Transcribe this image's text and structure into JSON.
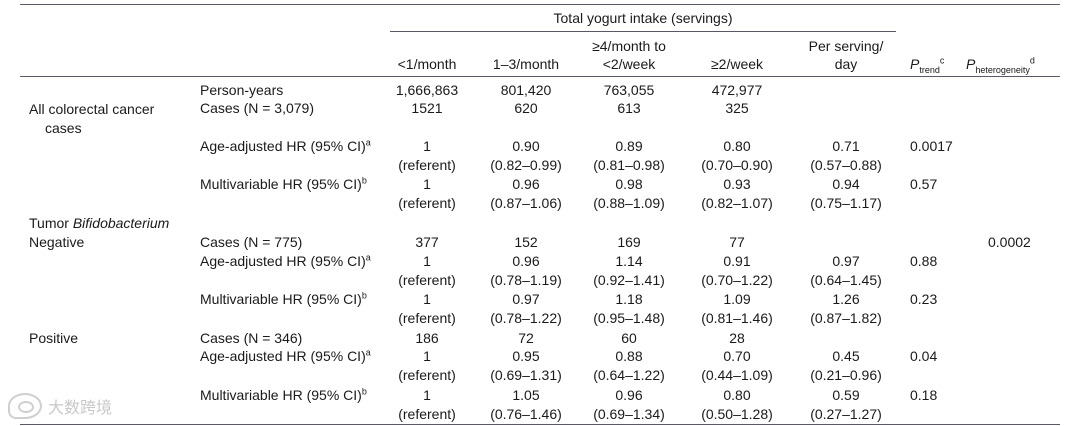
{
  "header": {
    "group_title": "Total yogurt intake (servings)",
    "col1": "<1/month",
    "col2": "1–3/month",
    "col3_line1": "≥4/month to",
    "col3_line2": "<2/week",
    "col4": "≥2/week",
    "col5_line1": "Per serving/",
    "col5_line2": "day",
    "ptrend_p": "P",
    "ptrend_sub": "trend",
    "ptrend_sup": "c",
    "phet_p": "P",
    "phet_sub": "heterogeneity",
    "phet_sup": "d"
  },
  "sections": {
    "all_line1": "All colorectal cancer",
    "all_line2": "cases",
    "tumor_prefix": "Tumor ",
    "tumor_italic": "Bifidobacterium",
    "negative": "Negative",
    "positive": "Positive"
  },
  "labels": {
    "person_years": "Person-years",
    "cases_all": "Cases (N = 3,079)",
    "cases_neg": "Cases (N = 775)",
    "cases_pos": "Cases (N = 346)",
    "age_adj": "Age-adjusted HR (95% CI)",
    "age_adj_sup": "a",
    "multi": "Multivariable HR (95% CI)",
    "multi_sup": "b"
  },
  "rows": {
    "person_years": [
      "1,666,863",
      "801,420",
      "763,055",
      "472,977"
    ],
    "all_cases": [
      "1521",
      "620",
      "613",
      "325"
    ],
    "all_age_hr": [
      "1",
      "0.90",
      "0.89",
      "0.80",
      "0.71"
    ],
    "all_age_ci": [
      "(referent)",
      "(0.82–0.99)",
      "(0.81–0.98)",
      "(0.70–0.90)",
      "(0.57–0.88)"
    ],
    "all_age_ptrend": "0.0017",
    "all_multi_hr": [
      "1",
      "0.96",
      "0.98",
      "0.93",
      "0.94"
    ],
    "all_multi_ci": [
      "(referent)",
      "(0.87–1.06)",
      "(0.88–1.09)",
      "(0.82–1.07)",
      "(0.75–1.17)"
    ],
    "all_multi_ptrend": "0.57",
    "neg_cases": [
      "377",
      "152",
      "169",
      "77"
    ],
    "neg_phet": "0.0002",
    "neg_age_hr": [
      "1",
      "0.96",
      "1.14",
      "0.91",
      "0.97"
    ],
    "neg_age_ci": [
      "(referent)",
      "(0.78–1.19)",
      "(0.92–1.41)",
      "(0.70–1.22)",
      "(0.64–1.45)"
    ],
    "neg_age_ptrend": "0.88",
    "neg_multi_hr": [
      "1",
      "0.97",
      "1.18",
      "1.09",
      "1.26"
    ],
    "neg_multi_ci": [
      "(referent)",
      "(0.78–1.22)",
      "(0.95–1.48)",
      "(0.81–1.46)",
      "(0.87–1.82)"
    ],
    "neg_multi_ptrend": "0.23",
    "pos_cases": [
      "186",
      "72",
      "60",
      "28"
    ],
    "pos_age_hr": [
      "1",
      "0.95",
      "0.88",
      "0.70",
      "0.45"
    ],
    "pos_age_ci": [
      "(referent)",
      "(0.69–1.31)",
      "(0.64–1.22)",
      "(0.44–1.09)",
      "(0.21–0.96)"
    ],
    "pos_age_ptrend": "0.04",
    "pos_multi_hr": [
      "1",
      "1.05",
      "0.96",
      "0.80",
      "0.59"
    ],
    "pos_multi_ci": [
      "(referent)",
      "(0.76–1.46)",
      "(0.69–1.34)",
      "(0.50–1.28)",
      "(0.27–1.27)"
    ],
    "pos_multi_ptrend": "0.18"
  },
  "watermark": "大数跨境"
}
